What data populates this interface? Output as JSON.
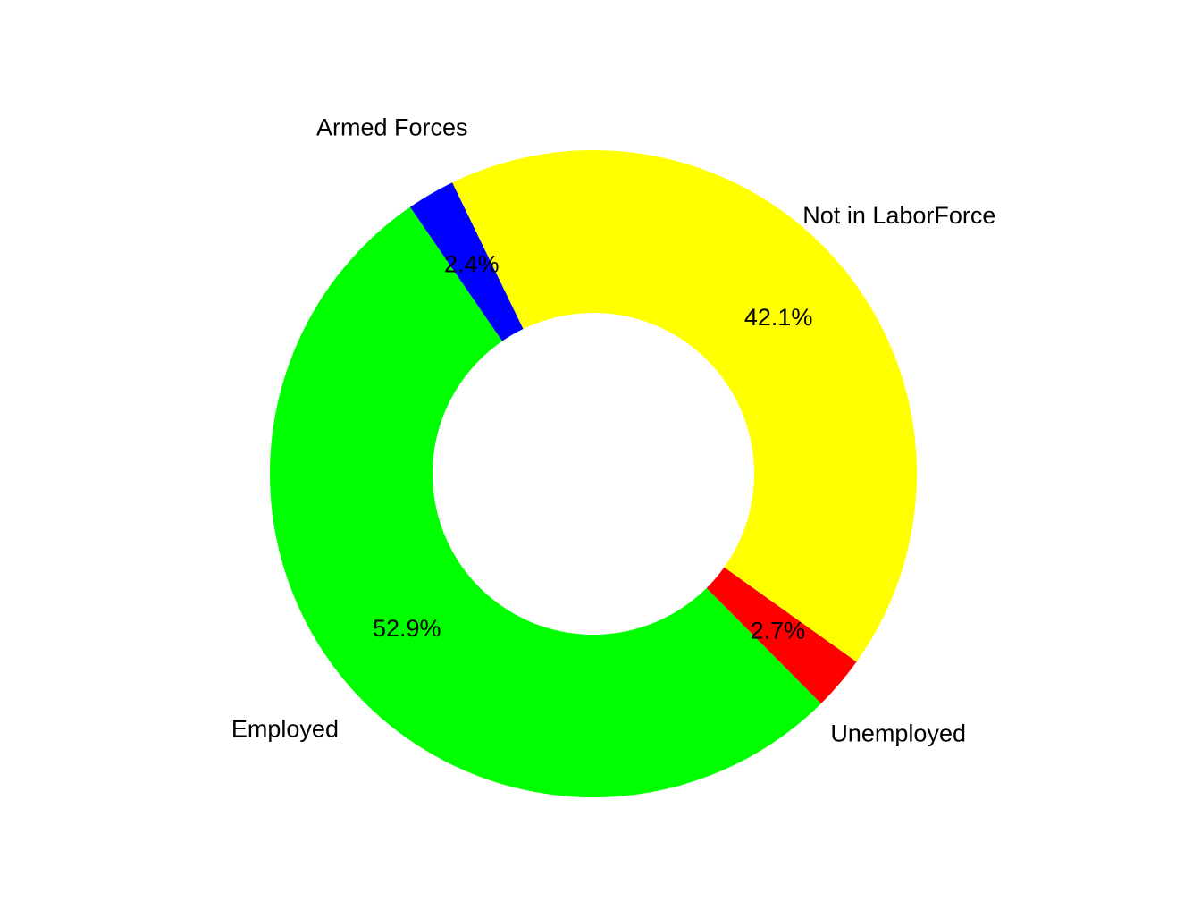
{
  "chart_data": {
    "type": "pie",
    "donut": true,
    "title": "",
    "categories": [
      "Employed",
      "Unemployed",
      "Not in LaborForce",
      "Armed Forces"
    ],
    "values": [
      52.9,
      2.7,
      42.1,
      2.4
    ],
    "percent_labels": [
      "52.9%",
      "2.7%",
      "42.1%",
      "2.4%"
    ],
    "colors": [
      "#00ff00",
      "#ff0000",
      "#ffff00",
      "#0000ff"
    ],
    "legend": "none"
  }
}
